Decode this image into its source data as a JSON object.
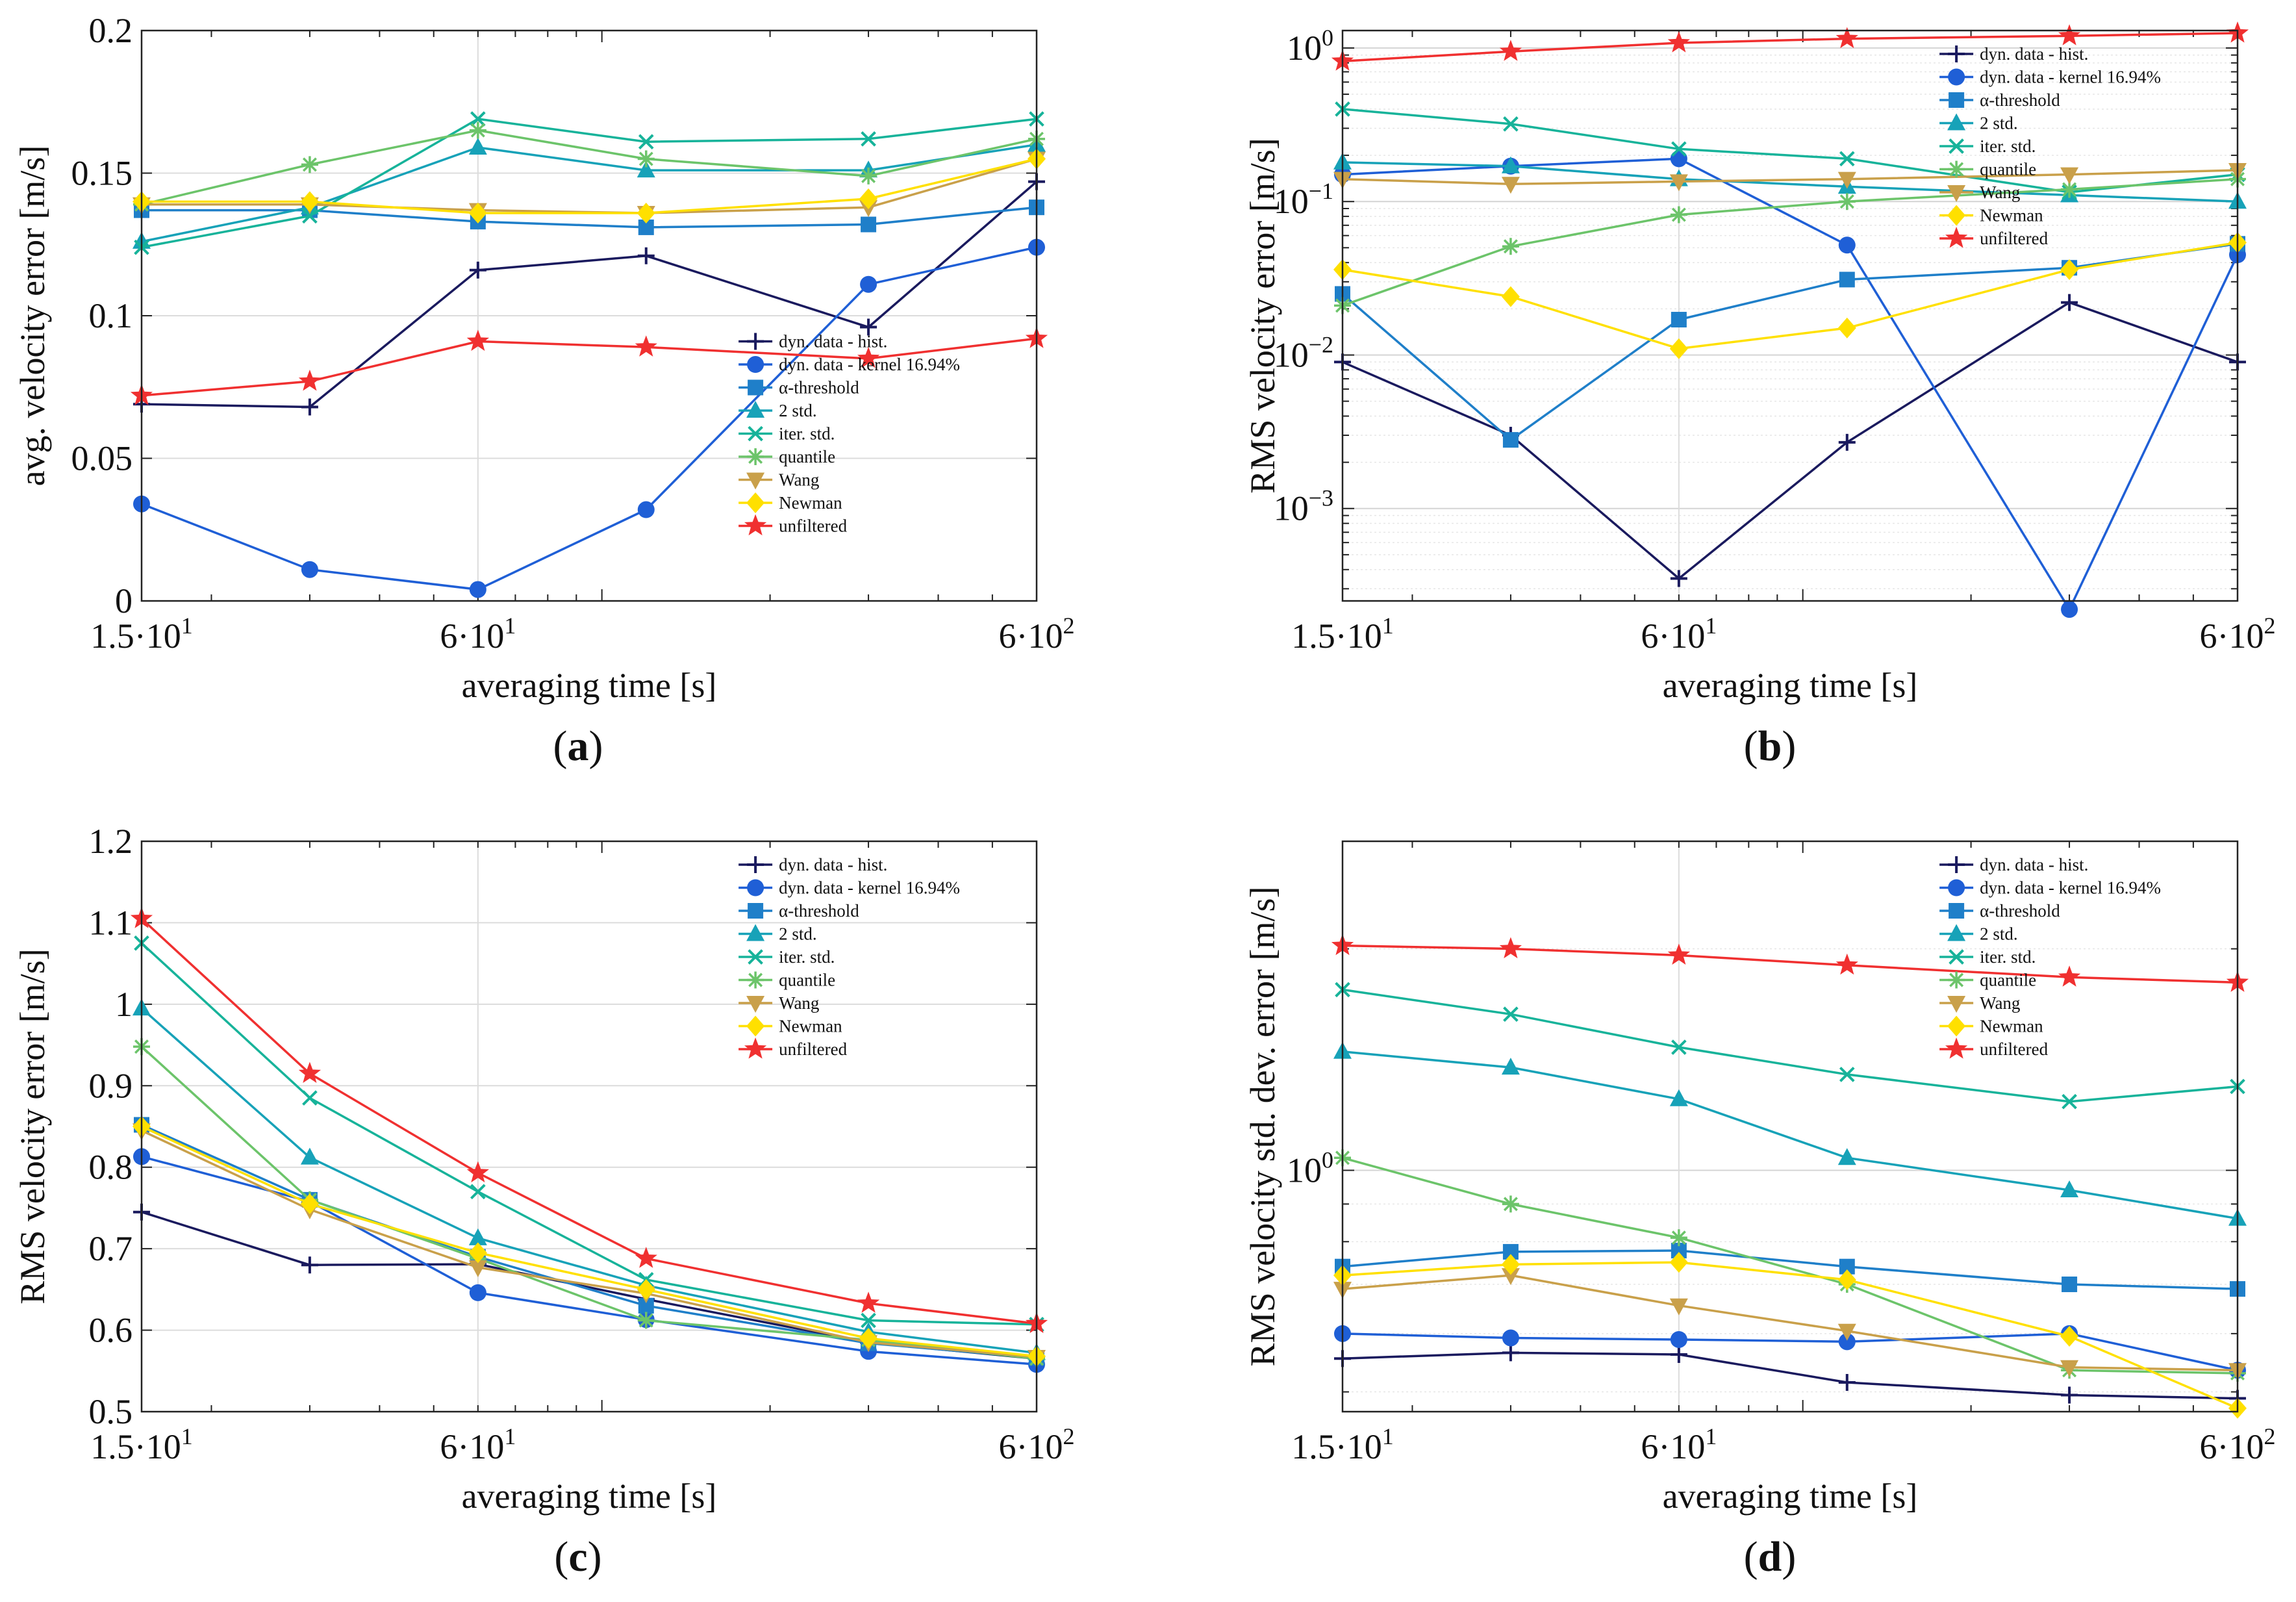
{
  "figure": {
    "label_open": "(",
    "label_close": ")"
  },
  "legend_entries": [
    "dyn. data - hist.",
    "dyn. data - kernel 16.94%",
    "α-threshold",
    "2 std.",
    "iter. std.",
    "quantile",
    "Wang",
    "Newman",
    "unfiltered"
  ],
  "chart_data": [
    {
      "panel": "a",
      "type": "line",
      "xscale": "log",
      "yscale": "linear",
      "xlabel": "averaging time [s]",
      "ylabel": "avg. velocity error [m/s]",
      "xlim": [
        15,
        600
      ],
      "ylim": [
        0,
        0.2
      ],
      "xticks": [
        15,
        60,
        600
      ],
      "xtick_labels": [
        "1.5·10¹",
        "6·10¹",
        "6·10²"
      ],
      "yticks": [
        0,
        0.05,
        0.1,
        0.15,
        0.2
      ],
      "ytick_labels": [
        "0",
        "0.05",
        "0.1",
        "0.15",
        "0.2"
      ],
      "legend": "bottom-right",
      "x": [
        15,
        30,
        60,
        120,
        300,
        600
      ],
      "series": [
        {
          "name": "dyn. data - hist.",
          "color": "#1a1a5e",
          "marker": "plus",
          "values": [
            0.069,
            0.068,
            0.116,
            0.121,
            0.096,
            0.147
          ]
        },
        {
          "name": "dyn. data - kernel 16.94%",
          "color": "#1f5fd6",
          "marker": "circle",
          "values": [
            0.034,
            0.011,
            0.004,
            0.032,
            0.111,
            0.124
          ]
        },
        {
          "name": "α-threshold",
          "color": "#1f7fc9",
          "marker": "square",
          "values": [
            0.137,
            0.137,
            0.133,
            0.131,
            0.132,
            0.138
          ]
        },
        {
          "name": "2 std.",
          "color": "#17a2b8",
          "marker": "triangle-up",
          "values": [
            0.126,
            0.138,
            0.159,
            0.151,
            0.151,
            0.16
          ]
        },
        {
          "name": "iter. std.",
          "color": "#17b39a",
          "marker": "x",
          "values": [
            0.124,
            0.135,
            0.169,
            0.161,
            0.162,
            0.169
          ]
        },
        {
          "name": "quantile",
          "color": "#6cc46a",
          "marker": "asterisk",
          "values": [
            0.139,
            0.153,
            0.165,
            0.155,
            0.149,
            0.162
          ]
        },
        {
          "name": "Wang",
          "color": "#c9a04a",
          "marker": "triangle-down",
          "values": [
            0.139,
            0.139,
            0.137,
            0.136,
            0.138,
            0.155
          ]
        },
        {
          "name": "Newman",
          "color": "#ffe000",
          "marker": "diamond",
          "values": [
            0.14,
            0.14,
            0.136,
            0.136,
            0.141,
            0.155
          ]
        },
        {
          "name": "unfiltered",
          "color": "#f03030",
          "marker": "star",
          "values": [
            0.072,
            0.077,
            0.091,
            0.089,
            0.085,
            0.092
          ]
        }
      ]
    },
    {
      "panel": "b",
      "type": "line",
      "xscale": "log",
      "yscale": "log",
      "xlabel": "averaging time [s]",
      "ylabel": "RMS velocity error [m/s]",
      "xlim": [
        15,
        600
      ],
      "ylim": [
        0.00025,
        1.3
      ],
      "xticks": [
        15,
        60,
        600
      ],
      "xtick_labels": [
        "1.5·10¹",
        "6·10¹",
        "6·10²"
      ],
      "yticks": [
        0.001,
        0.01,
        0.1,
        1
      ],
      "ytick_labels": [
        "10⁻³",
        "10⁻²",
        "10⁻¹",
        "10⁰"
      ],
      "legend": "top-right",
      "x": [
        15,
        30,
        60,
        120,
        300,
        600
      ],
      "series": [
        {
          "name": "dyn. data - hist.",
          "color": "#1a1a5e",
          "marker": "plus",
          "values": [
            0.009,
            0.003,
            0.00035,
            0.0027,
            0.022,
            0.009
          ]
        },
        {
          "name": "dyn. data - kernel 16.94%",
          "color": "#1f5fd6",
          "marker": "circle",
          "values": [
            0.15,
            0.17,
            0.19,
            0.052,
            0.00022,
            0.045
          ]
        },
        {
          "name": "α-threshold",
          "color": "#1f7fc9",
          "marker": "square",
          "values": [
            0.025,
            0.0028,
            0.017,
            0.031,
            0.037,
            0.053
          ]
        },
        {
          "name": "2 std.",
          "color": "#17a2b8",
          "marker": "triangle-up",
          "values": [
            0.18,
            0.17,
            0.14,
            0.125,
            0.11,
            0.1
          ]
        },
        {
          "name": "iter. std.",
          "color": "#17b39a",
          "marker": "x",
          "values": [
            0.4,
            0.32,
            0.22,
            0.19,
            0.115,
            0.15
          ]
        },
        {
          "name": "quantile",
          "color": "#6cc46a",
          "marker": "asterisk",
          "values": [
            0.021,
            0.051,
            0.082,
            0.1,
            0.12,
            0.14
          ]
        },
        {
          "name": "Wang",
          "color": "#c9a04a",
          "marker": "triangle-down",
          "values": [
            0.14,
            0.13,
            0.135,
            0.14,
            0.15,
            0.16
          ]
        },
        {
          "name": "Newman",
          "color": "#ffe000",
          "marker": "diamond",
          "values": [
            0.036,
            0.024,
            0.011,
            0.015,
            0.036,
            0.054
          ]
        },
        {
          "name": "unfiltered",
          "color": "#f03030",
          "marker": "star",
          "values": [
            0.82,
            0.95,
            1.08,
            1.15,
            1.2,
            1.25
          ]
        }
      ]
    },
    {
      "panel": "c",
      "type": "line",
      "xscale": "log",
      "yscale": "linear",
      "xlabel": "averaging time [s]",
      "ylabel": "RMS velocity error [m/s]",
      "xlim": [
        15,
        600
      ],
      "ylim": [
        0.5,
        1.2
      ],
      "xticks": [
        15,
        60,
        600
      ],
      "xtick_labels": [
        "1.5·10¹",
        "6·10¹",
        "6·10²"
      ],
      "yticks": [
        0.5,
        0.6,
        0.7,
        0.8,
        0.9,
        1.0,
        1.1,
        1.2
      ],
      "ytick_labels": [
        "0.5",
        "0.6",
        "0.7",
        "0.8",
        "0.9",
        "1",
        "1.1",
        "1.2"
      ],
      "legend": "top-right",
      "x": [
        15,
        30,
        60,
        120,
        300,
        600
      ],
      "series": [
        {
          "name": "dyn. data - hist.",
          "color": "#1a1a5e",
          "marker": "plus",
          "values": [
            0.745,
            0.68,
            0.681,
            0.638,
            0.585,
            0.565
          ]
        },
        {
          "name": "dyn. data - kernel 16.94%",
          "color": "#1f5fd6",
          "marker": "circle",
          "values": [
            0.813,
            0.758,
            0.646,
            0.613,
            0.574,
            0.558
          ]
        },
        {
          "name": "α-threshold",
          "color": "#1f7fc9",
          "marker": "square",
          "values": [
            0.852,
            0.76,
            0.69,
            0.63,
            0.584,
            0.566
          ]
        },
        {
          "name": "2 std.",
          "color": "#17a2b8",
          "marker": "triangle-up",
          "values": [
            0.995,
            0.812,
            0.713,
            0.655,
            0.598,
            0.572
          ]
        },
        {
          "name": "iter. std.",
          "color": "#17b39a",
          "marker": "x",
          "values": [
            1.075,
            0.885,
            0.77,
            0.662,
            0.612,
            0.607
          ]
        },
        {
          "name": "quantile",
          "color": "#6cc46a",
          "marker": "asterisk",
          "values": [
            0.948,
            0.76,
            0.688,
            0.612,
            0.588,
            0.565
          ]
        },
        {
          "name": "Wang",
          "color": "#c9a04a",
          "marker": "triangle-down",
          "values": [
            0.845,
            0.748,
            0.677,
            0.645,
            0.585,
            0.567
          ]
        },
        {
          "name": "Newman",
          "color": "#ffe000",
          "marker": "diamond",
          "values": [
            0.85,
            0.755,
            0.695,
            0.65,
            0.59,
            0.568
          ]
        },
        {
          "name": "unfiltered",
          "color": "#f03030",
          "marker": "star",
          "values": [
            1.105,
            0.915,
            0.793,
            0.688,
            0.633,
            0.608
          ]
        }
      ]
    },
    {
      "panel": "d",
      "type": "line",
      "xscale": "log",
      "yscale": "log",
      "xlabel": "averaging time [s]",
      "ylabel": "RMS velocity std. dev. error [m/s]",
      "xlim": [
        15,
        600
      ],
      "ylim": [
        0.47,
        2.8
      ],
      "xticks": [
        15,
        60,
        600
      ],
      "xtick_labels": [
        "1.5·10¹",
        "6·10¹",
        "6·10²"
      ],
      "yticks": [
        1
      ],
      "ytick_labels": [
        "10⁰"
      ],
      "legend": "top-right",
      "x": [
        15,
        30,
        60,
        120,
        300,
        600
      ],
      "series": [
        {
          "name": "dyn. data - hist.",
          "color": "#1a1a5e",
          "marker": "plus",
          "values": [
            0.555,
            0.565,
            0.562,
            0.515,
            0.495,
            0.49
          ]
        },
        {
          "name": "dyn. data - kernel 16.94%",
          "color": "#1f5fd6",
          "marker": "circle",
          "values": [
            0.6,
            0.592,
            0.589,
            0.585,
            0.6,
            0.535
          ]
        },
        {
          "name": "α-threshold",
          "color": "#1f7fc9",
          "marker": "square",
          "values": [
            0.74,
            0.775,
            0.778,
            0.74,
            0.7,
            0.69
          ]
        },
        {
          "name": "2 std.",
          "color": "#17a2b8",
          "marker": "triangle-up",
          "values": [
            1.45,
            1.38,
            1.25,
            1.04,
            0.94,
            0.86
          ]
        },
        {
          "name": "iter. std.",
          "color": "#17b39a",
          "marker": "x",
          "values": [
            1.76,
            1.63,
            1.47,
            1.35,
            1.24,
            1.3
          ]
        },
        {
          "name": "quantile",
          "color": "#6cc46a",
          "marker": "asterisk",
          "values": [
            1.04,
            0.9,
            0.81,
            0.7,
            0.535,
            0.53
          ]
        },
        {
          "name": "Wang",
          "color": "#c9a04a",
          "marker": "triangle-down",
          "values": [
            0.69,
            0.72,
            0.655,
            0.605,
            0.54,
            0.535
          ]
        },
        {
          "name": "Newman",
          "color": "#ffe000",
          "marker": "diamond",
          "values": [
            0.72,
            0.745,
            0.75,
            0.71,
            0.595,
            0.475
          ]
        },
        {
          "name": "unfiltered",
          "color": "#f03030",
          "marker": "star",
          "values": [
            2.02,
            2.0,
            1.96,
            1.9,
            1.83,
            1.8
          ]
        }
      ]
    }
  ]
}
